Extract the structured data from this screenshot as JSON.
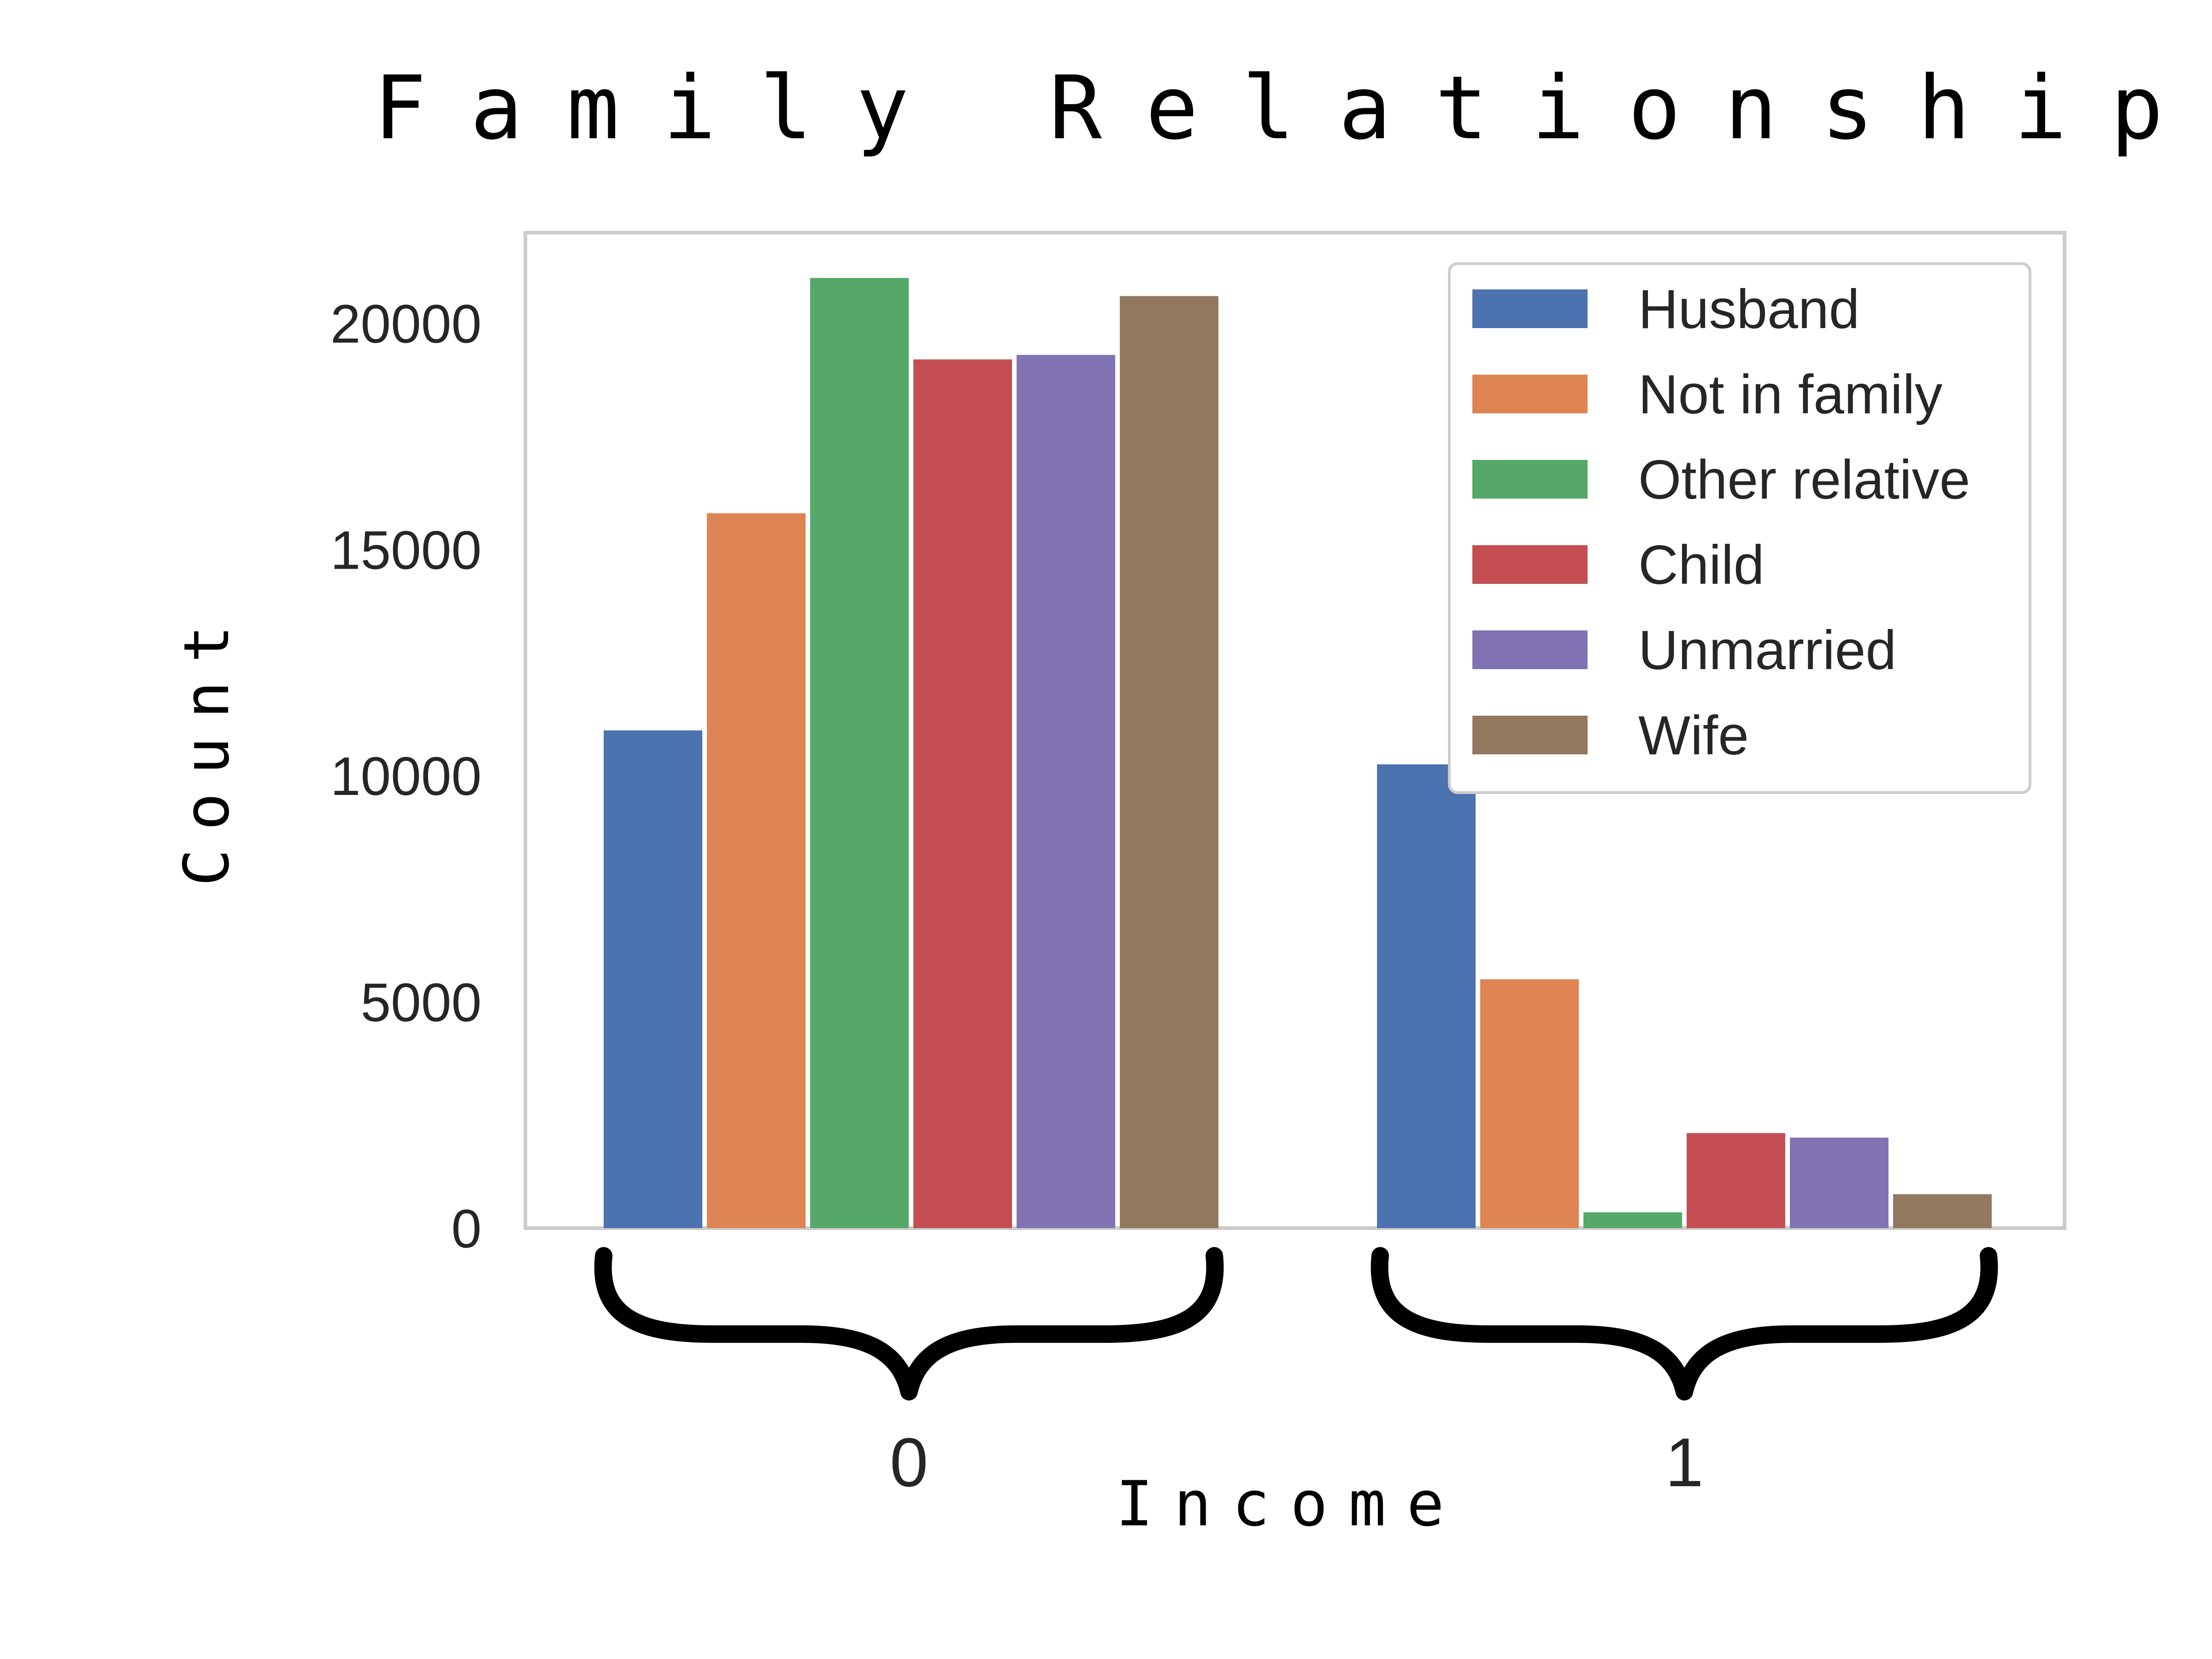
{
  "chart_data": {
    "type": "bar",
    "title": "Family Relationship",
    "xlabel": "Income",
    "ylabel": "Count",
    "categories": [
      "0",
      "1"
    ],
    "yticks": [
      0,
      5000,
      10000,
      15000,
      20000
    ],
    "ylim": [
      0,
      22000
    ],
    "grid": false,
    "legend_position": "top-right",
    "series": [
      {
        "name": "Husband",
        "color": "#4c72b0",
        "values": [
          11000,
          10250
        ]
      },
      {
        "name": "Not in family",
        "color": "#dd8452",
        "values": [
          15800,
          5500
        ]
      },
      {
        "name": "Other relative",
        "color": "#55a868",
        "values": [
          21000,
          350
        ]
      },
      {
        "name": "Child",
        "color": "#c44e52",
        "values": [
          19200,
          2100
        ]
      },
      {
        "name": "Unmarried",
        "color": "#8172b3",
        "values": [
          19300,
          2000
        ]
      },
      {
        "name": "Wife",
        "color": "#937860",
        "values": [
          20600,
          750
        ]
      }
    ]
  }
}
